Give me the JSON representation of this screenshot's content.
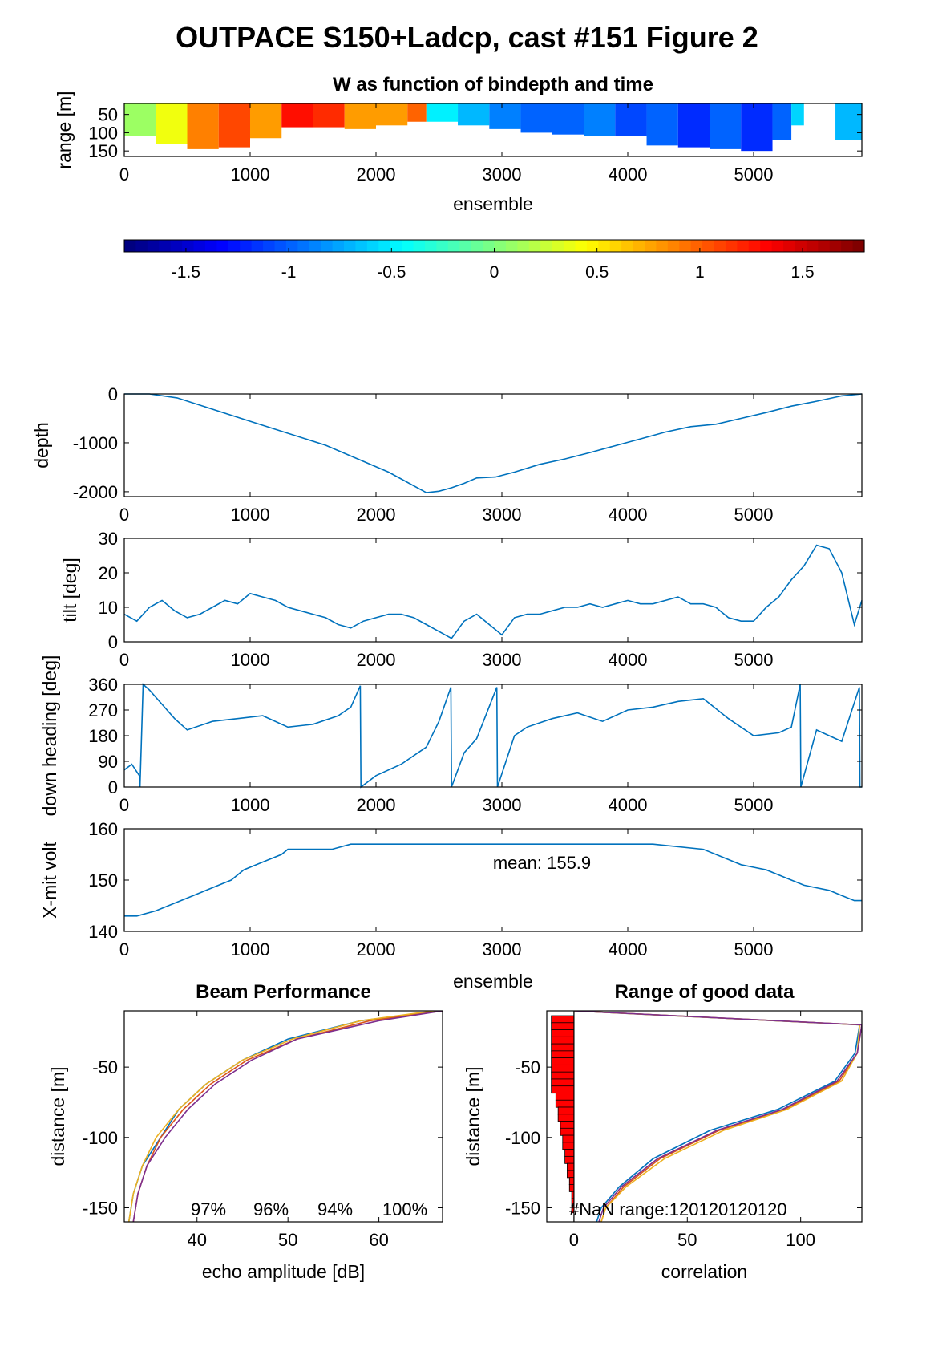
{
  "figure": {
    "title": "OUTPACE S150+Ladcp, cast #151 Figure 2"
  },
  "chart_data": [
    {
      "id": "w_panel",
      "type": "heatmap",
      "title": "W as function of bindepth and time",
      "xlabel": "ensemble",
      "ylabel": "range [m]",
      "xlim": [
        0,
        5860
      ],
      "ylim": [
        20,
        165
      ],
      "xticks": [
        0,
        1000,
        2000,
        3000,
        4000,
        5000
      ],
      "yticks": [
        50,
        100,
        150
      ],
      "colormap": "jet",
      "clim": [
        -1.8,
        1.8
      ],
      "colorbar_ticks": [
        -1.5,
        -1,
        -0.5,
        0,
        0.5,
        1,
        1.5
      ],
      "segments": [
        {
          "x": [
            0,
            250
          ],
          "w": 0.1,
          "maxrange": 110
        },
        {
          "x": [
            250,
            500
          ],
          "w": 0.4,
          "maxrange": 130
        },
        {
          "x": [
            500,
            750
          ],
          "w": 0.9,
          "maxrange": 145
        },
        {
          "x": [
            750,
            1000
          ],
          "w": 1.1,
          "maxrange": 140
        },
        {
          "x": [
            1000,
            1250
          ],
          "w": 0.8,
          "maxrange": 115
        },
        {
          "x": [
            1250,
            1500
          ],
          "w": 1.3,
          "maxrange": 85
        },
        {
          "x": [
            1500,
            1750
          ],
          "w": 1.2,
          "maxrange": 85
        },
        {
          "x": [
            1750,
            2000
          ],
          "w": 0.8,
          "maxrange": 90
        },
        {
          "x": [
            2000,
            2250
          ],
          "w": 0.8,
          "maxrange": 80
        },
        {
          "x": [
            2250,
            2400
          ],
          "w": 1.0,
          "maxrange": 70
        },
        {
          "x": [
            2400,
            2650
          ],
          "w": -0.5,
          "maxrange": 70
        },
        {
          "x": [
            2650,
            2900
          ],
          "w": -0.7,
          "maxrange": 80
        },
        {
          "x": [
            2900,
            3150
          ],
          "w": -0.9,
          "maxrange": 90
        },
        {
          "x": [
            3150,
            3400
          ],
          "w": -1.0,
          "maxrange": 100
        },
        {
          "x": [
            3400,
            3650
          ],
          "w": -1.0,
          "maxrange": 105
        },
        {
          "x": [
            3650,
            3900
          ],
          "w": -0.9,
          "maxrange": 110
        },
        {
          "x": [
            3900,
            4150
          ],
          "w": -1.1,
          "maxrange": 110
        },
        {
          "x": [
            4150,
            4400
          ],
          "w": -1.0,
          "maxrange": 135
        },
        {
          "x": [
            4400,
            4650
          ],
          "w": -1.2,
          "maxrange": 140
        },
        {
          "x": [
            4650,
            4900
          ],
          "w": -1.0,
          "maxrange": 145
        },
        {
          "x": [
            4900,
            5150
          ],
          "w": -1.2,
          "maxrange": 150
        },
        {
          "x": [
            5150,
            5300
          ],
          "w": -1.0,
          "maxrange": 120
        },
        {
          "x": [
            5300,
            5400
          ],
          "w": -0.6,
          "maxrange": 80
        },
        {
          "x": [
            5650,
            5860
          ],
          "w": -0.7,
          "maxrange": 120
        }
      ]
    },
    {
      "id": "depth_panel",
      "type": "line",
      "ylabel": "depth",
      "xlim": [
        0,
        5860
      ],
      "ylim": [
        -2100,
        0
      ],
      "xticks": [
        0,
        1000,
        2000,
        3000,
        4000,
        5000
      ],
      "yticks": [
        0,
        -1000,
        -2000
      ],
      "series": [
        {
          "x": [
            0,
            200,
            420,
            1000,
            1600,
            2100,
            2400,
            2500,
            2600,
            2700,
            2800,
            2950,
            3100,
            3300,
            3500,
            3700,
            3900,
            4100,
            4300,
            4500,
            4700,
            4900,
            5100,
            5300,
            5500,
            5700,
            5860
          ],
          "values": [
            0,
            0,
            -80,
            -560,
            -1050,
            -1600,
            -2020,
            -1990,
            -1920,
            -1830,
            -1720,
            -1700,
            -1600,
            -1440,
            -1330,
            -1200,
            -1060,
            -920,
            -780,
            -670,
            -620,
            -500,
            -380,
            -250,
            -150,
            -40,
            0
          ]
        }
      ]
    },
    {
      "id": "tilt_panel",
      "type": "line",
      "ylabel": "tilt [deg]",
      "xlim": [
        0,
        5860
      ],
      "ylim": [
        0,
        30
      ],
      "xticks": [
        0,
        1000,
        2000,
        3000,
        4000,
        5000
      ],
      "yticks": [
        0,
        10,
        20,
        30
      ],
      "series": [
        {
          "x": [
            0,
            100,
            200,
            300,
            400,
            500,
            600,
            700,
            800,
            900,
            1000,
            1100,
            1200,
            1300,
            1400,
            1500,
            1600,
            1700,
            1800,
            1900,
            2000,
            2100,
            2200,
            2300,
            2400,
            2500,
            2600,
            2700,
            2800,
            2900,
            3000,
            3100,
            3200,
            3300,
            3400,
            3500,
            3600,
            3700,
            3800,
            3900,
            4000,
            4100,
            4200,
            4300,
            4400,
            4500,
            4600,
            4700,
            4800,
            4900,
            5000,
            5100,
            5200,
            5300,
            5400,
            5500,
            5600,
            5700,
            5800,
            5860
          ],
          "values": [
            8,
            6,
            10,
            12,
            9,
            7,
            8,
            10,
            12,
            11,
            14,
            13,
            12,
            10,
            9,
            8,
            7,
            5,
            4,
            6,
            7,
            8,
            8,
            7,
            5,
            3,
            1,
            6,
            8,
            5,
            2,
            7,
            8,
            8,
            9,
            10,
            10,
            11,
            10,
            11,
            12,
            11,
            11,
            12,
            13,
            11,
            11,
            10,
            7,
            6,
            6,
            10,
            13,
            18,
            22,
            28,
            27,
            20,
            5,
            12
          ]
        }
      ]
    },
    {
      "id": "heading_panel",
      "type": "line",
      "ylabel": "down heading [deg]",
      "xlim": [
        0,
        5860
      ],
      "ylim": [
        0,
        360
      ],
      "xticks": [
        0,
        1000,
        2000,
        3000,
        4000,
        5000
      ],
      "yticks": [
        0,
        90,
        180,
        270,
        360
      ],
      "series": [
        {
          "x": [
            0,
            60,
            120,
            125,
            150,
            200,
            300,
            400,
            500,
            700,
            900,
            1100,
            1300,
            1500,
            1700,
            1800,
            1875,
            1880,
            2000,
            2200,
            2400,
            2500,
            2595,
            2600,
            2700,
            2800,
            2960,
            2965,
            3100,
            3200,
            3400,
            3600,
            3800,
            4000,
            4200,
            4400,
            4600,
            4800,
            5000,
            5200,
            5300,
            5370,
            5375,
            5500,
            5700,
            5840,
            5845,
            5860
          ],
          "values": [
            60,
            80,
            40,
            0,
            360,
            340,
            290,
            240,
            200,
            230,
            240,
            250,
            210,
            220,
            250,
            280,
            355,
            0,
            40,
            80,
            140,
            230,
            350,
            0,
            120,
            170,
            350,
            0,
            180,
            210,
            240,
            260,
            230,
            270,
            280,
            300,
            310,
            240,
            180,
            190,
            210,
            360,
            0,
            200,
            160,
            350,
            0,
            0
          ]
        }
      ]
    },
    {
      "id": "volt_panel",
      "type": "line",
      "ylabel": "X-mit volt",
      "xlabel": "ensemble",
      "annotation": "mean: 155.9",
      "xlim": [
        0,
        5860
      ],
      "ylim": [
        140,
        160
      ],
      "xticks": [
        0,
        1000,
        2000,
        3000,
        4000,
        5000
      ],
      "yticks": [
        140,
        150,
        160
      ],
      "series": [
        {
          "x": [
            0,
            100,
            250,
            350,
            450,
            550,
            650,
            750,
            850,
            950,
            1050,
            1150,
            1250,
            1300,
            1650,
            1800,
            3000,
            4200,
            4600,
            4700,
            4800,
            4900,
            5000,
            5100,
            5200,
            5300,
            5400,
            5500,
            5600,
            5700,
            5800,
            5860
          ],
          "values": [
            143,
            143,
            144,
            145,
            146,
            147,
            148,
            149,
            150,
            152,
            153,
            154,
            155,
            156,
            156,
            157,
            157,
            157,
            156,
            155,
            154,
            153,
            152.5,
            152,
            151,
            150,
            149,
            148.5,
            148,
            147,
            146,
            146
          ]
        }
      ]
    },
    {
      "id": "beam_panel",
      "type": "line",
      "title": "Beam Performance",
      "xlabel": "echo amplitude [dB]",
      "ylabel": "distance [m]",
      "xlim": [
        32,
        67
      ],
      "ylim": [
        -160,
        -10
      ],
      "xticks": [
        40,
        50,
        60
      ],
      "yticks": [
        -50,
        -100,
        -150
      ],
      "beam_pct": [
        "97%",
        "96%",
        "94%",
        "100%"
      ],
      "series": [
        {
          "color": "#0072bd",
          "x": [
            67,
            58,
            50,
            45,
            41,
            38,
            36,
            34,
            33,
            32.5
          ],
          "values": [
            -10,
            -17,
            -30,
            -45,
            -62,
            -80,
            -100,
            -120,
            -140,
            -160
          ]
        },
        {
          "color": "#d95319",
          "x": [
            67,
            59,
            51,
            45.5,
            41.5,
            38.5,
            36,
            34.5,
            33.5,
            33
          ],
          "values": [
            -10,
            -17,
            -30,
            -45,
            -62,
            -80,
            -100,
            -120,
            -140,
            -160
          ]
        },
        {
          "color": "#edb120",
          "x": [
            66,
            58,
            50.5,
            45,
            41,
            38,
            35.5,
            34,
            33,
            32.5
          ],
          "values": [
            -10,
            -17,
            -30,
            -45,
            -62,
            -80,
            -100,
            -120,
            -140,
            -160
          ]
        },
        {
          "color": "#7e2f8e",
          "x": [
            67,
            60,
            51,
            46,
            42,
            39,
            36.5,
            34.5,
            33.5,
            33
          ],
          "values": [
            -10,
            -17,
            -30,
            -45,
            -62,
            -80,
            -100,
            -120,
            -140,
            -160
          ]
        }
      ]
    },
    {
      "id": "range_panel",
      "type": "line",
      "title": "Range of good data",
      "xlabel": "correlation",
      "ylabel": "distance [m]",
      "annotation": "#NaN range:",
      "nan_counts": [
        "120",
        "120",
        "120",
        "120"
      ],
      "xlim": [
        -12,
        127
      ],
      "ylim": [
        -160,
        -10
      ],
      "xticks": [
        0,
        50,
        100
      ],
      "yticks": [
        -50,
        -100,
        -150
      ],
      "nan_bars": {
        "depths": [
          -16,
          -21,
          -26,
          -31,
          -36,
          -41,
          -46,
          -51,
          -56,
          -61,
          -66,
          -71,
          -76,
          -81,
          -86,
          -91,
          -96,
          -101,
          -106,
          -111,
          -116,
          -121,
          -126,
          -131,
          -136,
          -141,
          -146,
          -151
        ],
        "values": [
          10,
          10,
          10,
          10,
          10,
          10,
          10,
          10,
          10,
          10,
          10,
          8,
          8,
          7,
          7,
          6,
          6,
          5,
          5,
          4,
          4,
          3,
          3,
          2,
          2,
          1,
          1,
          1
        ]
      },
      "series": [
        {
          "color": "#0072bd",
          "x": [
            0,
            126,
            124,
            115,
            90,
            60,
            35,
            20,
            12,
            10
          ],
          "values": [
            -10,
            -20,
            -40,
            -60,
            -80,
            -95,
            -115,
            -135,
            -150,
            -160
          ]
        },
        {
          "color": "#d95319",
          "x": [
            0,
            127,
            125,
            117,
            93,
            64,
            38,
            22,
            14,
            12
          ],
          "values": [
            -10,
            -20,
            -40,
            -60,
            -80,
            -95,
            -115,
            -135,
            -150,
            -160
          ]
        },
        {
          "color": "#edb120",
          "x": [
            0,
            126,
            125,
            118,
            94,
            66,
            40,
            23,
            14,
            12
          ],
          "values": [
            -10,
            -20,
            -40,
            -60,
            -80,
            -95,
            -115,
            -135,
            -150,
            -160
          ]
        },
        {
          "color": "#7e2f8e",
          "x": [
            0,
            127,
            125,
            116,
            92,
            63,
            37,
            21,
            13,
            11
          ],
          "values": [
            -10,
            -20,
            -40,
            -60,
            -80,
            -95,
            -115,
            -135,
            -150,
            -160
          ]
        }
      ]
    }
  ]
}
